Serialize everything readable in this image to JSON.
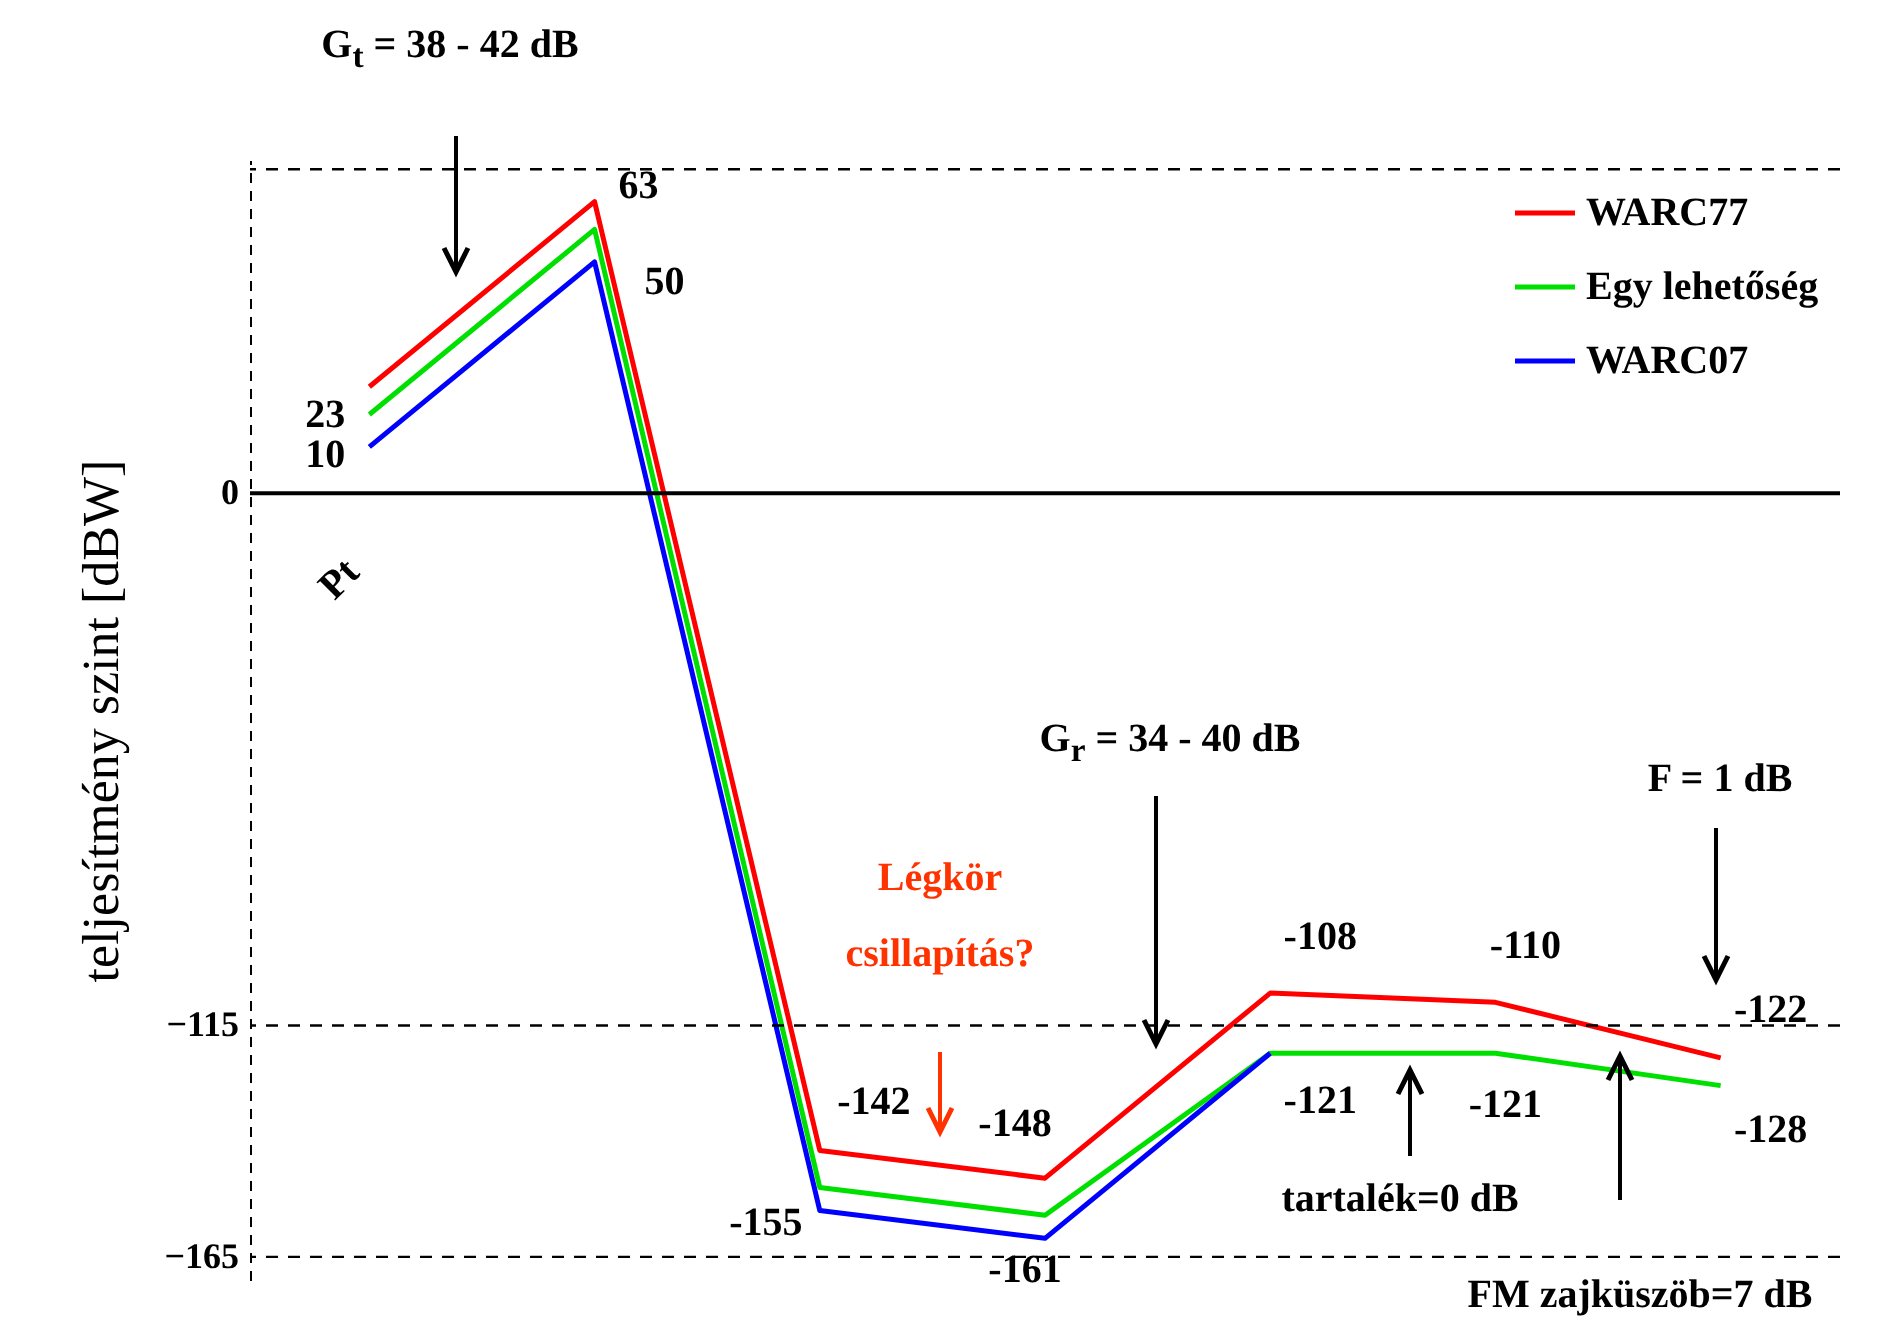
{
  "chart_data": {
    "type": "line",
    "ylabel": "teljesítmény szint [dBW]",
    "categories": [
      null,
      null,
      null,
      null,
      null,
      null,
      null
    ],
    "series": [
      {
        "name": "WARC77",
        "color": "#ff0000",
        "values": [
          23,
          63,
          -142,
          -148,
          -108,
          -110,
          -122
        ],
        "value_labels": [
          "23",
          "63",
          "-142",
          "-148",
          "-108",
          "-110",
          "-122"
        ]
      },
      {
        "name": "Egy lehetőség",
        "color": "#00e000",
        "values": [
          17,
          57,
          -150,
          -156,
          -121,
          -121,
          -128
        ],
        "value_labels": [
          null,
          null,
          null,
          null,
          "-121",
          "-121",
          "-128"
        ]
      },
      {
        "name": "WARC07",
        "color": "#0000ff",
        "values": [
          10,
          50,
          -155,
          -161,
          -121,
          null,
          null
        ],
        "value_labels": [
          "10",
          "50",
          "-155",
          "-161",
          null,
          null,
          null
        ]
      }
    ],
    "ylim": [
      -170,
      72
    ],
    "yticks": [
      0,
      -115,
      -165
    ],
    "grid": false,
    "legend": "top right",
    "tick_labels": "y",
    "marker": "none",
    "line_style": "solid",
    "ref_lines": [
      {
        "axis": "y",
        "value": 0,
        "line_style": "solid",
        "color": "#000000"
      },
      {
        "axis": "y",
        "value": -115,
        "line_style": "dashed",
        "color": "#000000"
      },
      {
        "axis": "y",
        "value": -165,
        "line_style": "dashed",
        "color": "#000000"
      },
      {
        "axis": "y",
        "value": 70,
        "line_style": "dashed",
        "color": "#000000"
      }
    ],
    "annotations": [
      "G$_{t}$ = 38 - 42 dB",
      "Pt",
      "G$_{r}$ = 34 - 40 dB",
      "F = 1 dB",
      "Légkör csillapítás?",
      "tartalék=0 dB",
      "FM zajküszöb=7 dB"
    ]
  }
}
